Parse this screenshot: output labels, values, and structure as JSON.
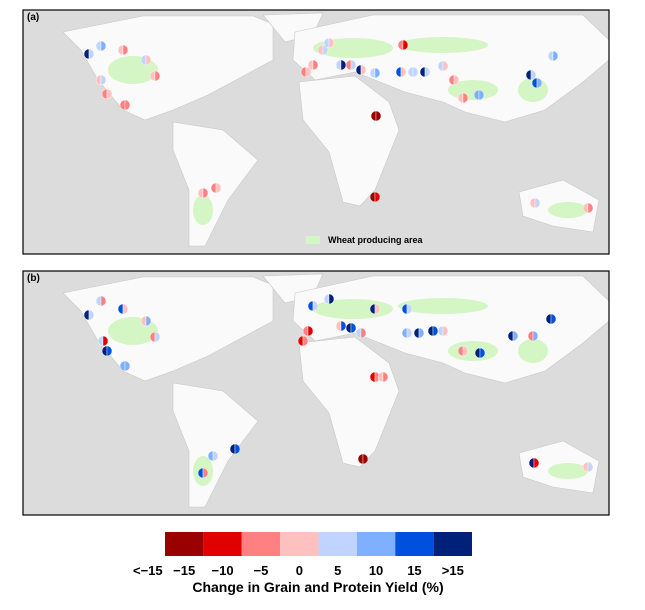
{
  "panels": [
    {
      "label": "(a)",
      "note": "Wheat producing area"
    },
    {
      "label": "(b)"
    }
  ],
  "legend": {
    "colors": [
      "#9b0000",
      "#e00000",
      "#ff8080",
      "#ffc0c0",
      "#c0d4ff",
      "#7fb0ff",
      "#0050e0",
      "#00207a"
    ],
    "labels": [
      "<−15",
      "−15",
      "−10",
      "−5",
      "0",
      "5",
      "10",
      "15",
      ">15"
    ],
    "title": "Change in Grain and Protein Yield (%)"
  }
}
